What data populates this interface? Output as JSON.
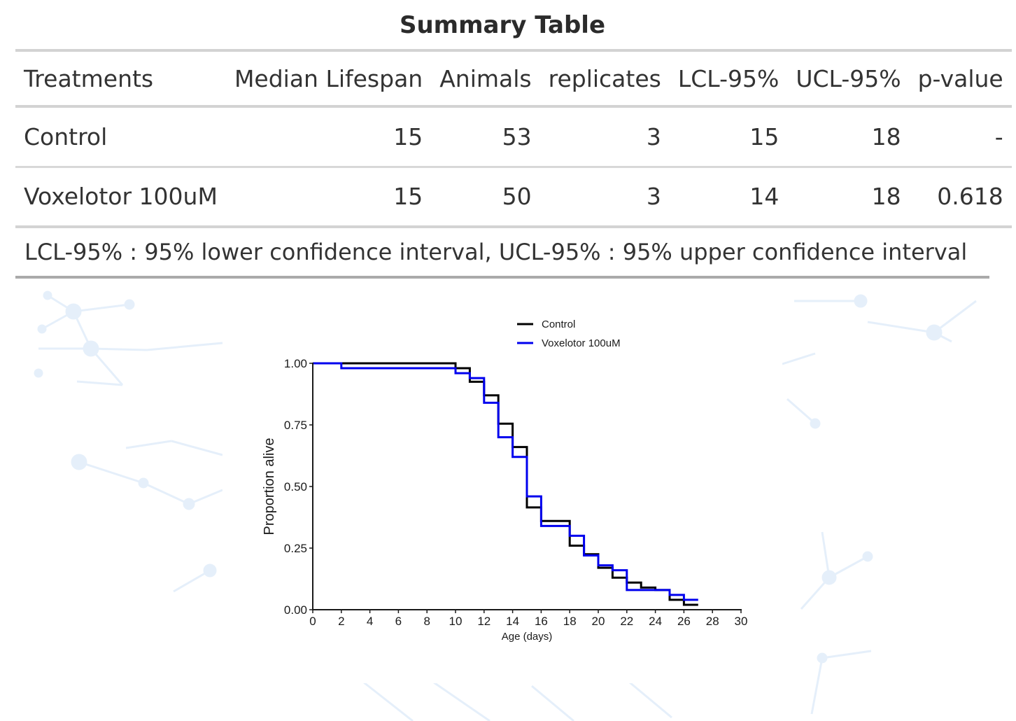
{
  "table": {
    "title": "Summary Table",
    "columns": [
      "Treatments",
      "Median Lifespan",
      "Animals",
      "replicates",
      "LCL-95%",
      "UCL-95%",
      "p-value"
    ],
    "rows": [
      [
        "Control",
        "15",
        "53",
        "3",
        "15",
        "18",
        "-"
      ],
      [
        "Voxelotor 100uM",
        "15",
        "50",
        "3",
        "14",
        "18",
        "0.618"
      ]
    ],
    "footnote": "LCL-95% : 95% lower confidence interval, UCL-95% : 95% upper confidence interval"
  },
  "chart_data": {
    "type": "line",
    "subtype": "step (Kaplan-Meier survival)",
    "title": "",
    "xlabel": "Age (days)",
    "ylabel": "Proportion alive",
    "xlim": [
      0,
      30
    ],
    "ylim": [
      0,
      1
    ],
    "x_ticks": [
      "0",
      "2",
      "4",
      "6",
      "8",
      "10",
      "12",
      "14",
      "16",
      "18",
      "20",
      "22",
      "24",
      "26",
      "28",
      "30"
    ],
    "y_ticks": [
      "0.00",
      "0.25",
      "0.50",
      "0.75",
      "1.00"
    ],
    "grid": false,
    "legend_position": "top",
    "series": [
      {
        "name": "Control",
        "color": "#000000",
        "x": [
          0,
          10,
          11,
          12,
          13,
          14,
          15,
          16,
          18,
          19,
          20,
          21,
          22,
          23,
          24,
          25,
          26,
          27
        ],
        "y": [
          1.0,
          0.98,
          0.925,
          0.87,
          0.755,
          0.66,
          0.415,
          0.36,
          0.26,
          0.225,
          0.17,
          0.13,
          0.11,
          0.09,
          0.08,
          0.04,
          0.02,
          0.02
        ]
      },
      {
        "name": "Voxelotor 100uM",
        "color": "#0000ee",
        "x": [
          0,
          2,
          10,
          11,
          12,
          13,
          14,
          15,
          16,
          18,
          19,
          20,
          21,
          22,
          24,
          25,
          26,
          27
        ],
        "y": [
          1.0,
          0.98,
          0.96,
          0.94,
          0.84,
          0.7,
          0.62,
          0.46,
          0.34,
          0.3,
          0.22,
          0.18,
          0.16,
          0.08,
          0.08,
          0.06,
          0.04,
          0.04
        ]
      }
    ]
  }
}
